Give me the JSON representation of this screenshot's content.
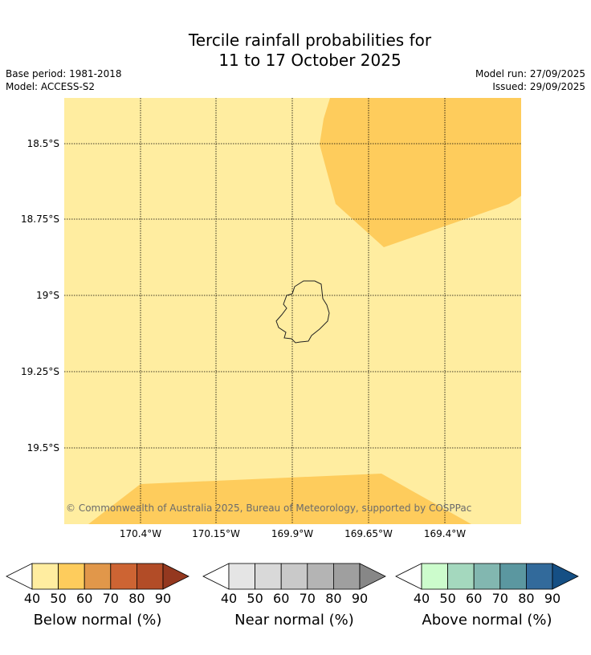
{
  "title": {
    "line1": "Tercile rainfall probabilities for",
    "line2": "11 to 17 October 2025"
  },
  "meta": {
    "base_period": "Base period: 1981-2018",
    "model": "Model: ACCESS-S2",
    "model_run": "Model run: 27/09/2025",
    "issued": "Issued: 29/09/2025"
  },
  "map": {
    "background_color": "#ffeda0",
    "region_color": "#fecc5c",
    "lat_labels": [
      "18.5°S",
      "18.75°S",
      "19°S",
      "19.25°S",
      "19.5°S"
    ],
    "lon_labels": [
      "170.4°W",
      "170.15°W",
      "169.9°W",
      "169.65°W",
      "169.4°W"
    ],
    "copyright": "© Commonwealth of Australia 2025, Bureau of Meteorology, supported by COSPPac"
  },
  "colorbars": [
    {
      "title": "Below normal (%)",
      "ticks": [
        "40",
        "50",
        "60",
        "70",
        "80",
        "90"
      ],
      "colors": [
        "#ffeda0",
        "#fecc5c",
        "#e1974a",
        "#cd6433",
        "#b24c27",
        "#94381f"
      ]
    },
    {
      "title": "Near normal (%)",
      "ticks": [
        "40",
        "50",
        "60",
        "70",
        "80",
        "90"
      ],
      "colors": [
        "#e5e5e5",
        "#d9d9d9",
        "#c9c9c9",
        "#b4b4b4",
        "#9f9f9f",
        "#878787"
      ]
    },
    {
      "title": "Above normal (%)",
      "ticks": [
        "40",
        "50",
        "60",
        "70",
        "80",
        "90"
      ],
      "colors": [
        "#ccfccc",
        "#a4d8be",
        "#82b7b0",
        "#5b97a0",
        "#326a9b",
        "#154f84"
      ]
    }
  ]
}
